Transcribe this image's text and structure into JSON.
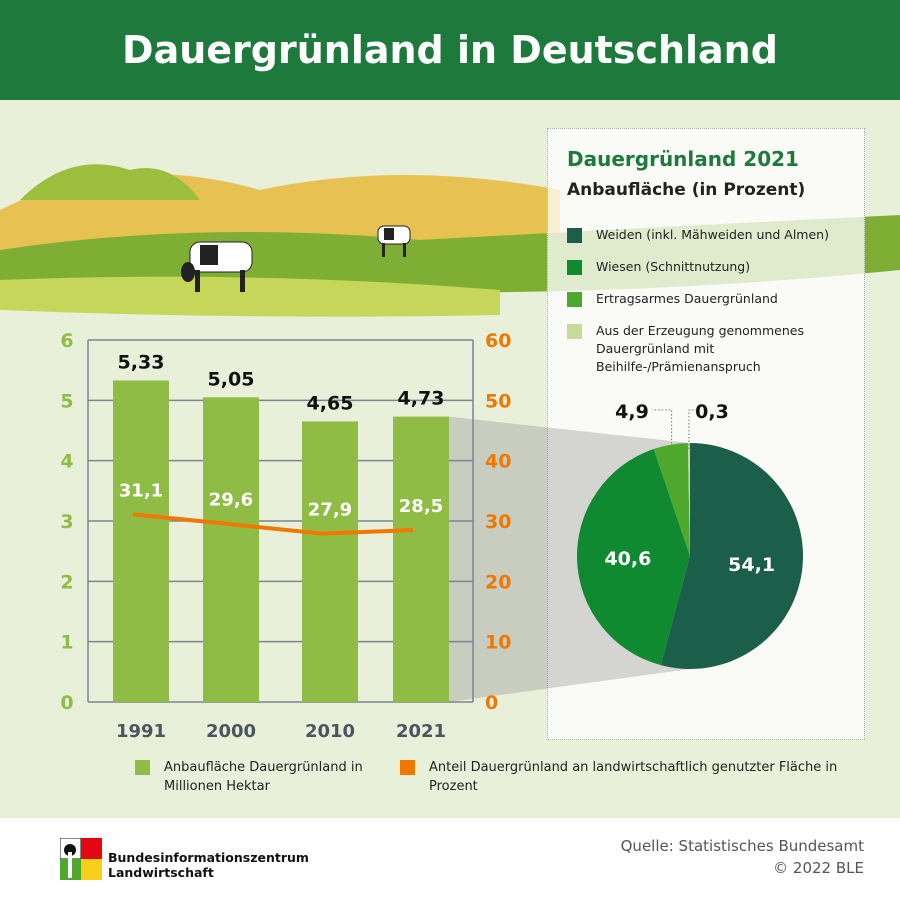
{
  "header": {
    "title": "Dauergrünland in Deutschland"
  },
  "colors": {
    "header": "#1e7a3c",
    "background": "#e9f0da",
    "bar": "#8fbc45",
    "line": "#f07800"
  },
  "chart_data": [
    {
      "type": "bar",
      "categories": [
        "1991",
        "2000",
        "2010",
        "2021"
      ],
      "series": [
        {
          "name": "Anbaufläche Dauergrünland in Millionen Hektar",
          "values": [
            5.33,
            5.05,
            4.65,
            4.73
          ],
          "labels": [
            "5,33",
            "5,05",
            "4,65",
            "4,73"
          ],
          "axis": "left",
          "color": "#8fbc45"
        },
        {
          "name": "Anteil Dauergrünland an landwirtschaftlich genutzter Fläche in Prozent",
          "type": "line",
          "values": [
            31.1,
            29.6,
            27.9,
            28.5
          ],
          "labels": [
            "31,1",
            "29,6",
            "27,9",
            "28,5"
          ],
          "axis": "right",
          "color": "#f07800"
        }
      ],
      "y_left": {
        "ylim": [
          0,
          6
        ],
        "ticks": [
          "0",
          "1",
          "2",
          "3",
          "4",
          "5",
          "6"
        ]
      },
      "y_right": {
        "ylim": [
          0,
          60
        ],
        "ticks": [
          "0",
          "10",
          "20",
          "30",
          "40",
          "50",
          "60"
        ]
      },
      "grid": true,
      "legend": "bottom"
    },
    {
      "type": "pie",
      "title": "Dauergrünland 2021",
      "subtitle": "Anbaufläche (in Prozent)",
      "slices": [
        {
          "name": "Weiden (inkl. Mähweiden und Almen)",
          "value": 54.1,
          "label": "54,1",
          "color": "#1b5e4a"
        },
        {
          "name": "Wiesen (Schnittnutzung)",
          "value": 40.6,
          "label": "40,6",
          "color": "#0f8a30"
        },
        {
          "name": "Ertragsarmes Dauergrünland",
          "value": 4.9,
          "label": "4,9",
          "color": "#4fa82e"
        },
        {
          "name": "Aus der Erzeugung genommenes Dauergrünland mit Beihilfe-/Prämienanspruch",
          "value": 0.3,
          "label": "0,3",
          "color": "#c5dc9c"
        }
      ]
    }
  ],
  "footer": {
    "logo_line1": "Bundesinformationszentrum",
    "logo_line2": "Landwirtschaft",
    "source": "Quelle: Statistisches Bundesamt",
    "copyright": "© 2022 BLE"
  }
}
